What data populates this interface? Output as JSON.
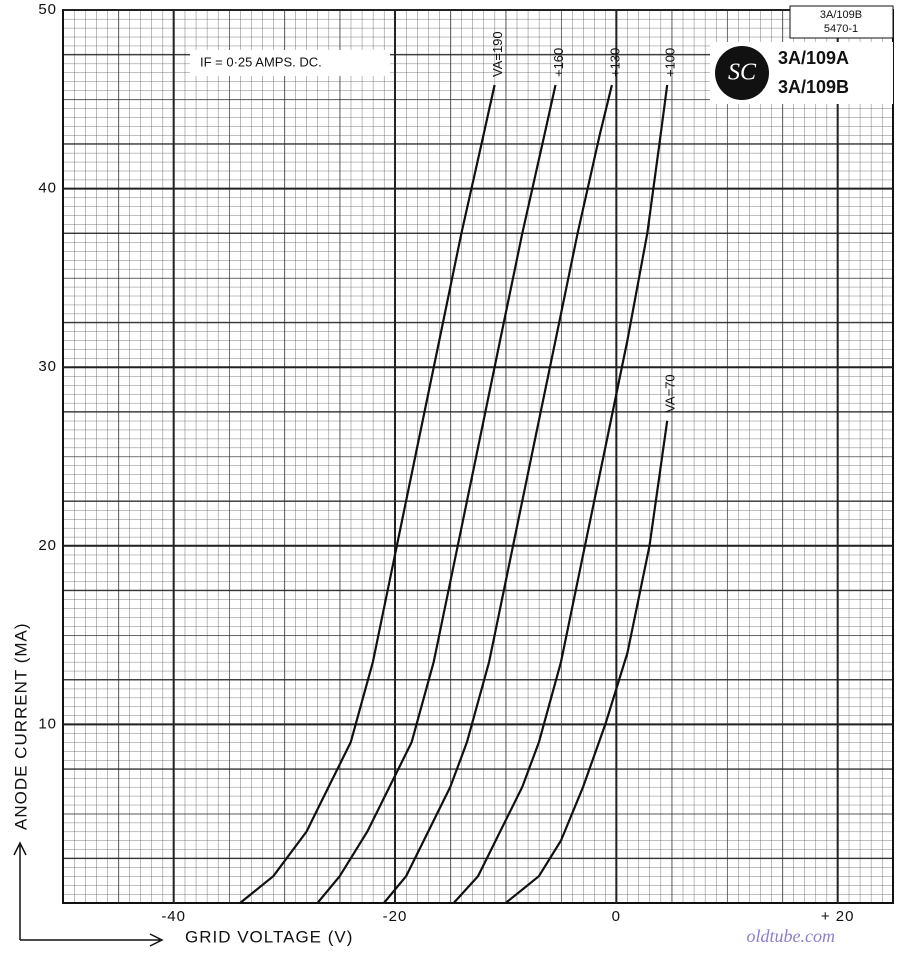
{
  "chart_data": {
    "type": "line",
    "x_label": "GRID VOLTAGE (V)",
    "y_label": "ANODE CURRENT (MA)",
    "annotation": "IF = 0·25 AMPS. DC.",
    "sheet_ref": [
      "3A/109B",
      "5470-1"
    ],
    "tube_types": [
      "3A/109A",
      "3A/109B"
    ],
    "watermark": "oldtube.com",
    "xlim": [
      -50,
      25
    ],
    "ylim": [
      0,
      50
    ],
    "xticks": [
      -40,
      -20,
      0,
      {
        "value": 20,
        "label": "+ 20"
      }
    ],
    "yticks": [
      10,
      20,
      30,
      40,
      50
    ],
    "grid": true,
    "series": [
      {
        "name": "VA=190",
        "color": "#111111",
        "x": [
          -34,
          -31,
          -28,
          -26,
          -24,
          -22,
          -20,
          -18,
          -16,
          -14,
          -12,
          -11
        ],
        "values": [
          0,
          1.5,
          4,
          6.5,
          9,
          13.5,
          19.5,
          25.5,
          31.5,
          37.5,
          43,
          45.8
        ]
      },
      {
        "name": "+160",
        "color": "#111111",
        "x": [
          -27,
          -25,
          -22.5,
          -20.5,
          -18.5,
          -16.5,
          -14.5,
          -12.5,
          -10.5,
          -8.5,
          -6.5,
          -5.5
        ],
        "values": [
          0,
          1.5,
          4,
          6.5,
          9,
          13.5,
          19.5,
          25.5,
          31.5,
          37.5,
          43,
          45.8
        ]
      },
      {
        "name": "+130",
        "color": "#111111",
        "x": [
          -21,
          -19,
          -17,
          -15,
          -13.5,
          -11.5,
          -9.5,
          -7.5,
          -5.5,
          -3.5,
          -1.5,
          -0.4
        ],
        "values": [
          0,
          1.5,
          4,
          6.5,
          9,
          13.5,
          19.5,
          25.5,
          31.5,
          37.5,
          43,
          45.8
        ]
      },
      {
        "name": "+100",
        "color": "#111111",
        "x": [
          -14.7,
          -12.5,
          -10.5,
          -8.5,
          -7,
          -5,
          -3,
          -1,
          1,
          2.8,
          4,
          4.6
        ],
        "values": [
          0,
          1.5,
          4,
          6.5,
          9,
          13.5,
          19.5,
          25.5,
          31.5,
          37.5,
          43,
          45.8
        ]
      },
      {
        "name": "VA=70",
        "color": "#111111",
        "x": [
          -10,
          -7,
          -5,
          -3,
          -1,
          1,
          3,
          4.6
        ],
        "values": [
          0,
          1.5,
          3.5,
          6.5,
          10,
          14,
          20,
          27
        ]
      }
    ]
  }
}
